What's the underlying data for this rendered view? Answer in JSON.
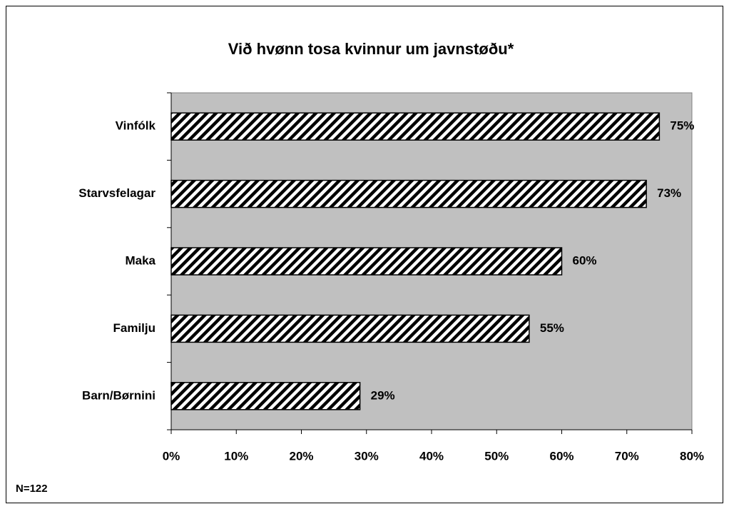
{
  "chart_data": {
    "type": "hbar",
    "title": "Við hvønn tosa kvinnur um javnstøðu*",
    "categories": [
      "Vinfólk",
      "Starvsfelagar",
      "Maka",
      "Familju",
      "Barn/Børnini"
    ],
    "values": [
      75,
      73,
      60,
      55,
      29
    ],
    "value_labels": [
      "75%",
      "73%",
      "60%",
      "55%",
      "29%"
    ],
    "xlim": [
      0,
      80
    ],
    "xticks": [
      {
        "value": 0,
        "label": "0%"
      },
      {
        "value": 10,
        "label": "10%"
      },
      {
        "value": 20,
        "label": "20%"
      },
      {
        "value": 30,
        "label": "30%"
      },
      {
        "value": 40,
        "label": "40%"
      },
      {
        "value": 50,
        "label": "50%"
      },
      {
        "value": 60,
        "label": "60%"
      },
      {
        "value": 70,
        "label": "70%"
      },
      {
        "value": 80,
        "label": "80%"
      }
    ],
    "annotation": "N=122",
    "plot_background": "#c0c0c0",
    "bar_fill": "hatched"
  }
}
